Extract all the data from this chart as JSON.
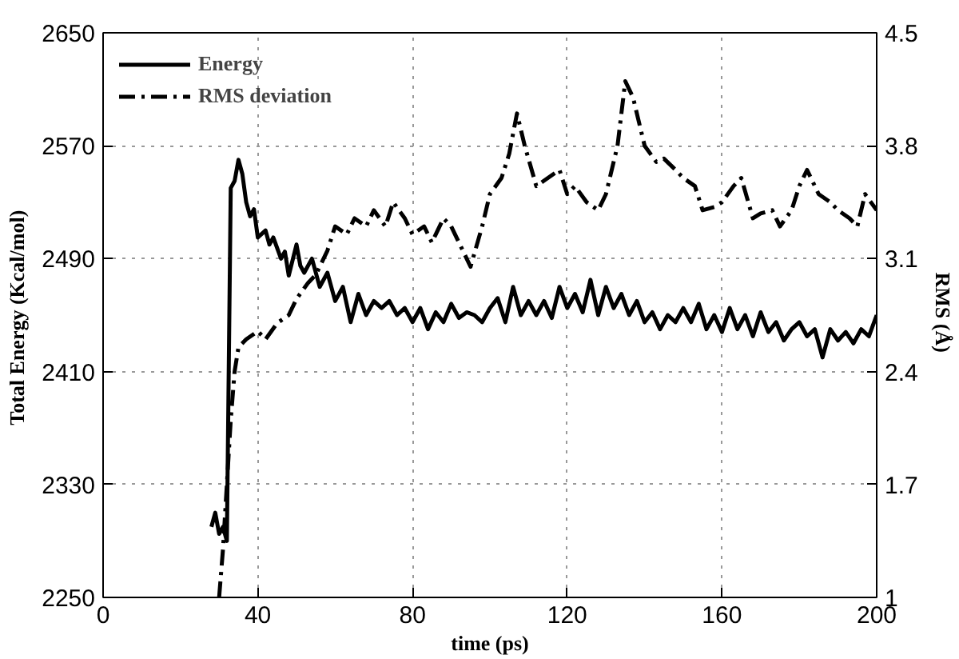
{
  "chart_data": {
    "type": "line",
    "xlabel": "time (ps)",
    "ylabel": "Total Energy  (Kcal/mol)",
    "y2label": "RMS  (Å)",
    "xlim": [
      0,
      200
    ],
    "xticks": [
      0,
      40,
      80,
      120,
      160,
      200
    ],
    "ylim": [
      2250,
      2650
    ],
    "yticks": [
      2250,
      2330,
      2410,
      2490,
      2570,
      2650
    ],
    "y2lim": [
      1,
      4.5
    ],
    "y2ticks": [
      1,
      1.7,
      2.4,
      3.1,
      3.8,
      4.5
    ],
    "grid": true,
    "legend": "top left",
    "series": [
      {
        "name": "Energy",
        "color": "#000000",
        "line_style": "solid",
        "x": [
          28,
          29,
          30,
          31,
          32,
          33,
          34,
          35,
          36,
          37,
          38,
          39,
          40,
          42,
          43,
          44,
          46,
          47,
          48,
          50,
          51,
          52,
          54,
          56,
          58,
          60,
          62,
          64,
          66,
          68,
          70,
          72,
          74,
          76,
          78,
          80,
          82,
          84,
          86,
          88,
          90,
          92,
          94,
          96,
          98,
          100,
          102,
          104,
          106,
          108,
          110,
          112,
          114,
          116,
          118,
          120,
          122,
          124,
          126,
          128,
          130,
          132,
          134,
          136,
          138,
          140,
          142,
          144,
          146,
          148,
          150,
          152,
          154,
          156,
          158,
          160,
          162,
          164,
          166,
          168,
          170,
          172,
          174,
          176,
          178,
          180,
          182,
          184,
          186,
          188,
          190,
          192,
          194,
          196,
          198,
          200
        ],
        "values": [
          2300,
          2310,
          2295,
          2300,
          2290,
          2540,
          2545,
          2560,
          2550,
          2530,
          2520,
          2525,
          2505,
          2510,
          2500,
          2505,
          2490,
          2495,
          2478,
          2500,
          2485,
          2480,
          2490,
          2470,
          2480,
          2460,
          2470,
          2445,
          2465,
          2450,
          2460,
          2455,
          2460,
          2450,
          2455,
          2445,
          2455,
          2440,
          2452,
          2445,
          2458,
          2448,
          2452,
          2450,
          2445,
          2455,
          2462,
          2445,
          2470,
          2450,
          2460,
          2450,
          2460,
          2448,
          2470,
          2455,
          2465,
          2452,
          2475,
          2450,
          2470,
          2455,
          2465,
          2450,
          2460,
          2445,
          2452,
          2440,
          2450,
          2445,
          2455,
          2445,
          2458,
          2440,
          2450,
          2438,
          2455,
          2440,
          2450,
          2435,
          2452,
          2438,
          2445,
          2432,
          2440,
          2445,
          2435,
          2440,
          2420,
          2440,
          2432,
          2438,
          2430,
          2440,
          2435,
          2450
        ]
      },
      {
        "name": "RMS deviation",
        "color": "#000000",
        "line_style": "dashdot",
        "axis": "y2",
        "x": [
          30,
          31,
          32,
          33,
          34,
          35,
          37,
          40,
          42,
          45,
          48,
          50,
          53,
          55,
          58,
          60,
          63,
          65,
          68,
          70,
          73,
          75,
          78,
          80,
          83,
          85,
          88,
          90,
          93,
          95,
          98,
          100,
          103,
          105,
          107,
          109,
          112,
          115,
          118,
          120,
          122,
          125,
          128,
          130,
          133,
          135,
          137,
          140,
          143,
          145,
          148,
          150,
          153,
          155,
          158,
          160,
          163,
          165,
          168,
          170,
          173,
          175,
          178,
          180,
          182,
          185,
          188,
          190,
          193,
          195,
          197,
          200
        ],
        "values": [
          1.0,
          1.3,
          1.7,
          2.1,
          2.4,
          2.55,
          2.6,
          2.65,
          2.6,
          2.7,
          2.75,
          2.85,
          2.95,
          3.0,
          3.15,
          3.3,
          3.25,
          3.35,
          3.3,
          3.4,
          3.3,
          3.45,
          3.35,
          3.25,
          3.3,
          3.2,
          3.35,
          3.3,
          3.15,
          3.05,
          3.3,
          3.5,
          3.6,
          3.75,
          4.0,
          3.8,
          3.55,
          3.6,
          3.65,
          3.5,
          3.55,
          3.45,
          3.4,
          3.5,
          3.8,
          4.2,
          4.1,
          3.8,
          3.7,
          3.72,
          3.65,
          3.6,
          3.55,
          3.4,
          3.42,
          3.45,
          3.55,
          3.6,
          3.35,
          3.38,
          3.4,
          3.3,
          3.4,
          3.55,
          3.65,
          3.5,
          3.45,
          3.4,
          3.35,
          3.3,
          3.5,
          3.4
        ]
      }
    ]
  }
}
